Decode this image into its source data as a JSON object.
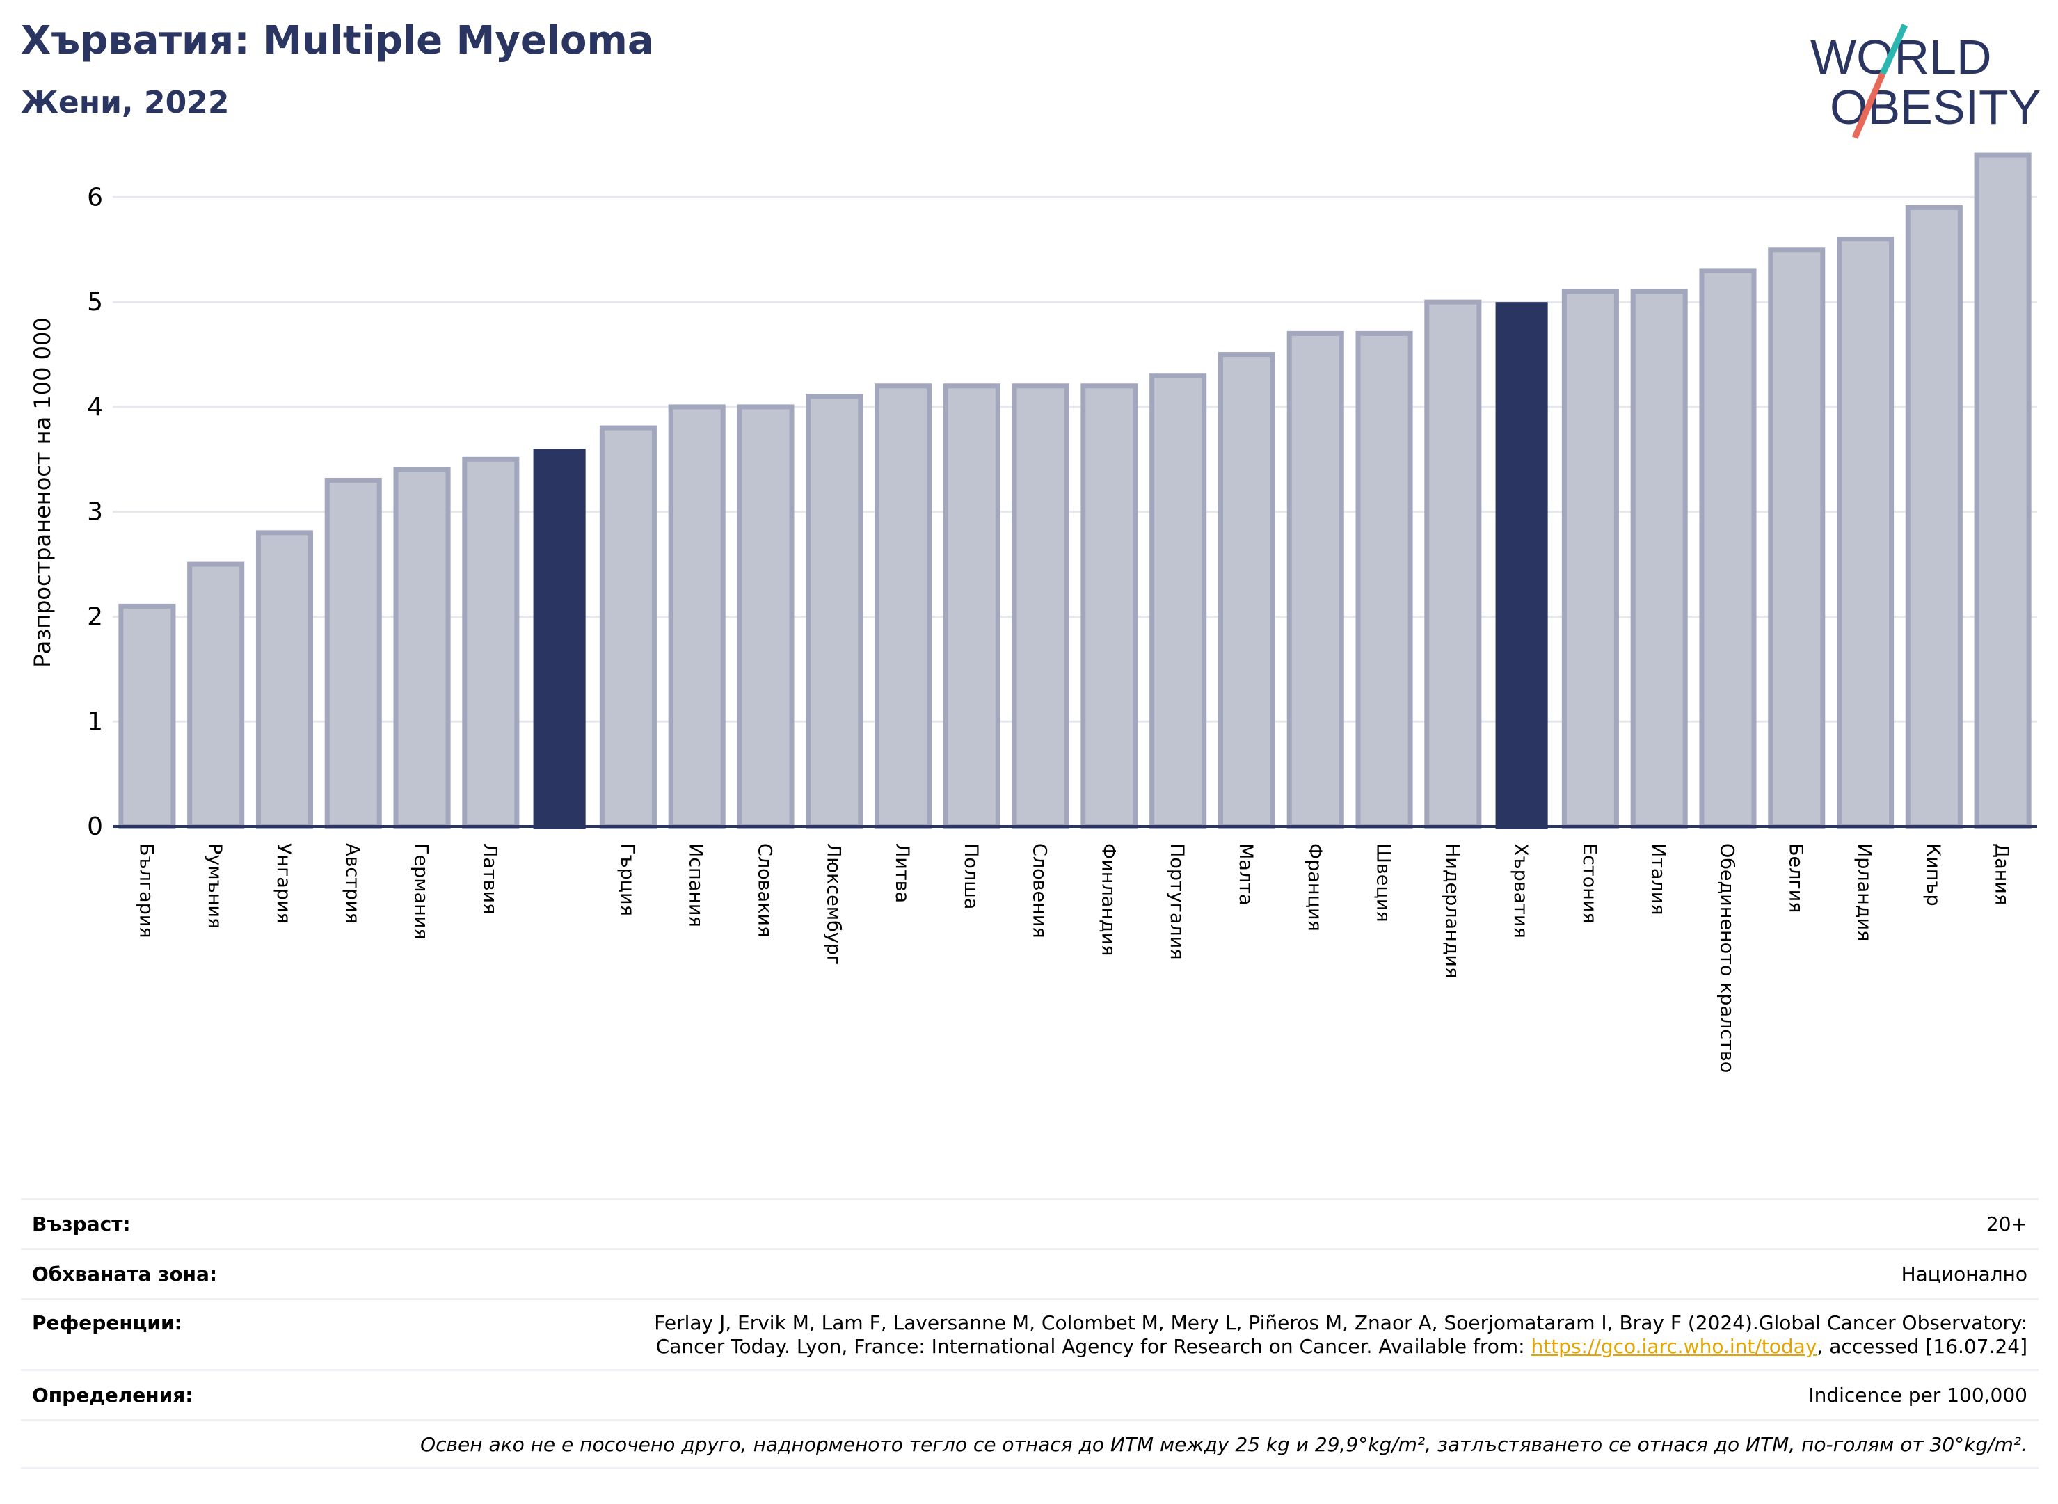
{
  "header": {
    "title": "Хърватия: Multiple Myeloma",
    "subtitle": "Жени, 2022"
  },
  "logo": {
    "line1": "WORLD",
    "line2": "OBESITY",
    "colors": {
      "text": "#2a3561",
      "slash_top": "#2bb6b0",
      "slash_bottom": "#e8685a"
    }
  },
  "chart_data": {
    "type": "bar",
    "title": "Хърватия: Multiple Myeloma",
    "subtitle": "Жени, 2022",
    "ylabel": "Разпространеност  на 100 000",
    "ylim": [
      0,
      6.5
    ],
    "yticks": [
      0,
      1,
      2,
      3,
      4,
      5,
      6
    ],
    "grid": true,
    "categories": [
      "България",
      "Румъния",
      "Унгария",
      "Австрия",
      "Германия",
      "Латвия",
      "",
      "Гърция",
      "Испания",
      "Словакия",
      "Люксембург",
      "Литва",
      "Полша",
      "Словения",
      "Финландия",
      "Португалия",
      "Малта",
      "Франция",
      "Швеция",
      "Нидерландия",
      "Хърватия",
      "Естония",
      "Италия",
      "Обединеното кралство",
      "Белгия",
      "Ирландия",
      "Кипър",
      "Дания"
    ],
    "values": [
      2.1,
      2.5,
      2.8,
      3.3,
      3.4,
      3.5,
      3.6,
      3.8,
      4.0,
      4.0,
      4.1,
      4.2,
      4.2,
      4.2,
      4.2,
      4.3,
      4.5,
      4.7,
      4.7,
      5.0,
      5.0,
      5.1,
      5.1,
      5.3,
      5.5,
      5.6,
      5.9,
      6.4
    ],
    "highlighted": [
      6,
      20
    ],
    "colors": {
      "bar": "#c0c3d0",
      "bar_edge": "#a2a7bd",
      "highlight": "#2a3561",
      "axis": "#2a3561",
      "grid": "#e6e8ee"
    }
  },
  "info": {
    "age_label": "Възраст:",
    "age_value": "20+",
    "area_label": "Обхваната зона:",
    "area_value": "Национално",
    "ref_label": "Референции:",
    "ref_line1": "Ferlay J, Ervik M, Lam F, Laversanne M, Colombet M, Mery L, Piñeros M, Znaor A, Soerjomataram I, Bray F (2024).Global Cancer Observatory:",
    "ref_line2_start": "Cancer Today. Lyon, France: International Agency for Research on Cancer. Available from: ",
    "ref_link": "https://gco.iarc.who.int/today",
    "ref_line2_end": ", accessed [16.07.24]",
    "def_label": "Определения:",
    "def_value": "Indicence per 100,000",
    "note": "Освен ако не е посочено друго, наднорменото тегло се отнася до ИТМ между 25 kg и 29,9°kg/m², затлъстяването се отнася до ИТМ, по-голям от 30°kg/m²."
  }
}
